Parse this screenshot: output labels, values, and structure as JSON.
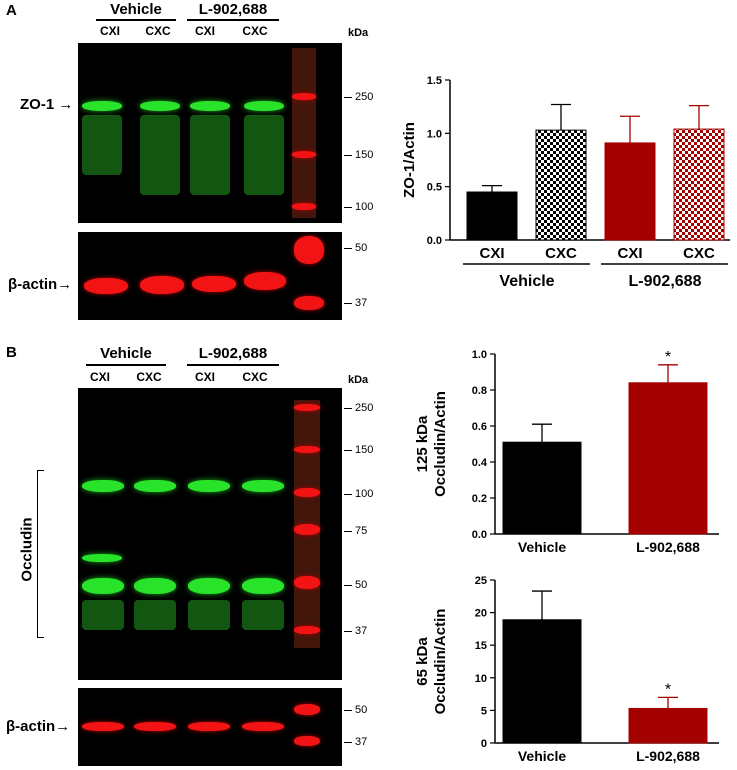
{
  "figure": {
    "panel_a": {
      "letter": "A",
      "groups": [
        "Vehicle",
        "L-902,688"
      ],
      "lanes": [
        "CXI",
        "CXC",
        "CXI",
        "CXC"
      ],
      "kda_unit": "kDa",
      "markers_top": [
        "250",
        "150",
        "100"
      ],
      "markers_bottom": [
        "50",
        "37"
      ],
      "label_zo1": "ZO-1",
      "label_actin": "β-actin"
    },
    "panel_b": {
      "letter": "B",
      "groups": [
        "Vehicle",
        "L-902,688"
      ],
      "lanes": [
        "CXI",
        "CXC",
        "CXI",
        "CXC"
      ],
      "kda_unit": "kDa",
      "markers_top": [
        "250",
        "150",
        "100",
        "75",
        "50",
        "37"
      ],
      "markers_bottom": [
        "50",
        "37"
      ],
      "label_occludin": "Occludin",
      "label_actin": "β-actin"
    }
  },
  "chart_data": [
    {
      "type": "bar",
      "ylabel": "ZO-1/Actin",
      "categories": [
        "CXI",
        "CXC",
        "CXI",
        "CXC"
      ],
      "groups": [
        "Vehicle",
        "L-902,688"
      ],
      "values": [
        0.45,
        1.03,
        0.91,
        1.04
      ],
      "errors": [
        0.06,
        0.24,
        0.25,
        0.22
      ],
      "fills": [
        "solid",
        "checker",
        "solid",
        "checker"
      ],
      "colors": [
        "#000000",
        "#000000",
        "#a50000",
        "#a50000"
      ],
      "ylim": [
        0,
        1.5
      ],
      "yticks": [
        "0.0",
        "0.5",
        "1.0",
        "1.5"
      ]
    },
    {
      "type": "bar",
      "ylabel": "125 kDa Occludin/Actin",
      "categories": [
        "Vehicle",
        "L-902,688"
      ],
      "values": [
        0.51,
        0.84
      ],
      "errors": [
        0.1,
        0.1
      ],
      "colors": [
        "#000000",
        "#a50000"
      ],
      "significance": [
        "",
        "*"
      ],
      "ylim": [
        0,
        1.0
      ],
      "yticks": [
        "0.0",
        "0.2",
        "0.4",
        "0.6",
        "0.8",
        "1.0"
      ]
    },
    {
      "type": "bar",
      "ylabel": "65 kDa Occludin/Actin",
      "categories": [
        "Vehicle",
        "L-902,688"
      ],
      "values": [
        18.9,
        5.3
      ],
      "errors": [
        4.4,
        1.7
      ],
      "colors": [
        "#000000",
        "#a50000"
      ],
      "significance": [
        "",
        "*"
      ],
      "ylim": [
        0,
        25
      ],
      "yticks": [
        "0",
        "5",
        "10",
        "15",
        "20",
        "25"
      ]
    }
  ]
}
